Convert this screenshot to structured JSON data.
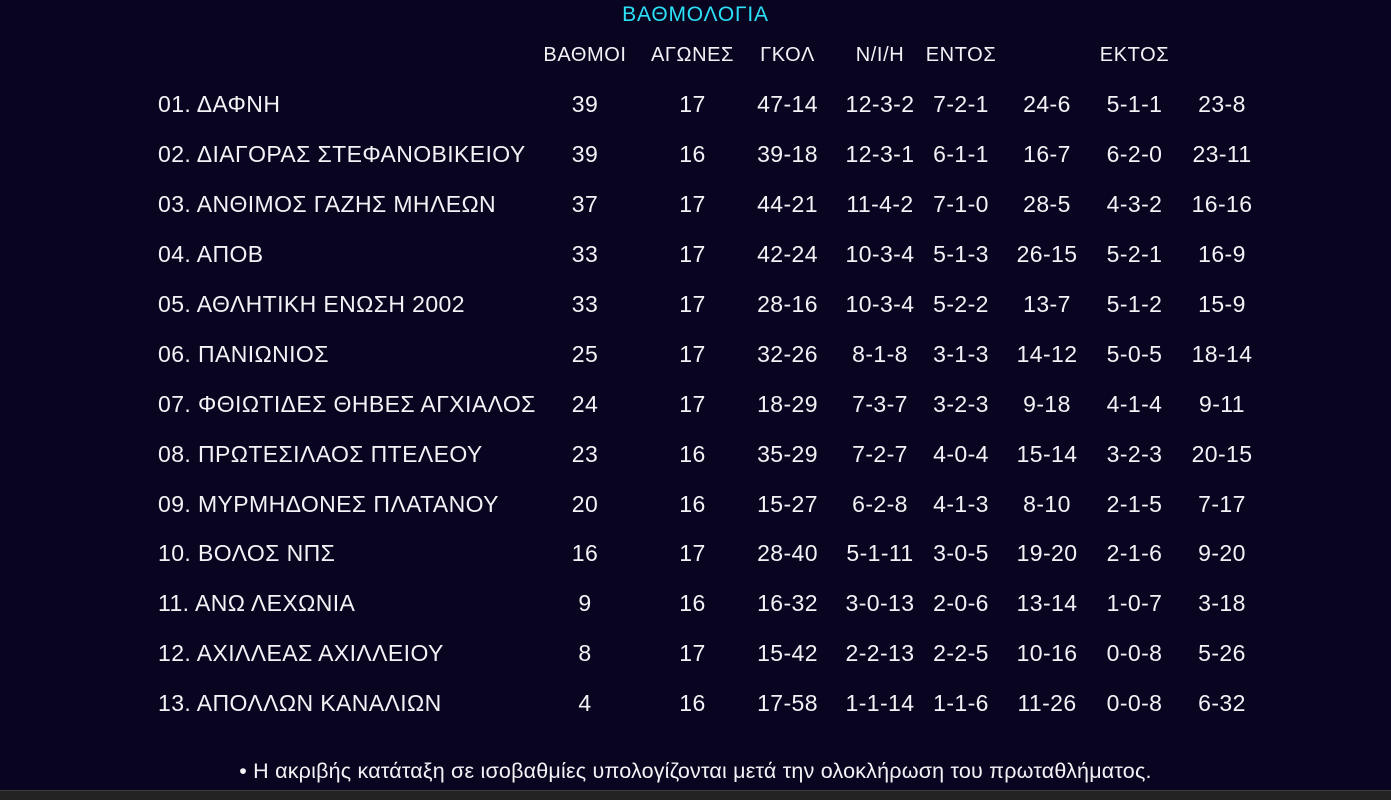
{
  "colors": {
    "background": "#090520",
    "accent_title": "#2be0f7",
    "text": "#f4f2f6",
    "bottom_bar": "#232323"
  },
  "title": "ΒΑΘΜΟΛΟΓΙΑ",
  "headers": {
    "points": "ΒΑΘΜΟΙ",
    "games": "ΑΓΩΝΕΣ",
    "goals": "ΓΚΟΛ",
    "record": "Ν/Ι/Η",
    "home": "ΕΝΤΟΣ",
    "away": "ΕΚΤΟΣ"
  },
  "teams": [
    {
      "rank": "01.",
      "name": "ΔΑΦΝΗ",
      "points": "39",
      "games": "17",
      "goals": "47-14",
      "record": "12-3-2",
      "home_record": "7-2-1",
      "home_goals": "24-6",
      "away_record": "5-1-1",
      "away_goals": "23-8"
    },
    {
      "rank": "02.",
      "name": "ΔΙΑΓΟΡΑΣ ΣΤΕΦΑΝΟΒΙΚΕΙΟΥ",
      "points": "39",
      "games": "16",
      "goals": "39-18",
      "record": "12-3-1",
      "home_record": "6-1-1",
      "home_goals": "16-7",
      "away_record": "6-2-0",
      "away_goals": "23-11"
    },
    {
      "rank": "03.",
      "name": "ΑΝΘΙΜΟΣ ΓΑΖΗΣ ΜΗΛΕΩΝ",
      "points": "37",
      "games": "17",
      "goals": "44-21",
      "record": "11-4-2",
      "home_record": "7-1-0",
      "home_goals": "28-5",
      "away_record": "4-3-2",
      "away_goals": "16-16"
    },
    {
      "rank": "04.",
      "name": "ΑΠΟΒ",
      "points": "33",
      "games": "17",
      "goals": "42-24",
      "record": "10-3-4",
      "home_record": "5-1-3",
      "home_goals": "26-15",
      "away_record": "5-2-1",
      "away_goals": "16-9"
    },
    {
      "rank": "05.",
      "name": "ΑΘΛΗΤΙΚΗ ΕΝΩΣΗ 2002",
      "points": "33",
      "games": "17",
      "goals": "28-16",
      "record": "10-3-4",
      "home_record": "5-2-2",
      "home_goals": "13-7",
      "away_record": "5-1-2",
      "away_goals": "15-9"
    },
    {
      "rank": "06.",
      "name": "ΠΑΝΙΩΝΙΟΣ",
      "points": "25",
      "games": "17",
      "goals": "32-26",
      "record": "8-1-8",
      "home_record": "3-1-3",
      "home_goals": "14-12",
      "away_record": "5-0-5",
      "away_goals": "18-14"
    },
    {
      "rank": "07.",
      "name": "ΦΘΙΩΤΙΔΕΣ ΘΗΒΕΣ ΑΓΧΙΑΛΟΣ",
      "points": "24",
      "games": "17",
      "goals": "18-29",
      "record": "7-3-7",
      "home_record": "3-2-3",
      "home_goals": "9-18",
      "away_record": "4-1-4",
      "away_goals": "9-11"
    },
    {
      "rank": "08.",
      "name": "ΠΡΩΤΕΣΙΛΑΟΣ ΠΤΕΛΕΟΥ",
      "points": "23",
      "games": "16",
      "goals": "35-29",
      "record": "7-2-7",
      "home_record": "4-0-4",
      "home_goals": "15-14",
      "away_record": "3-2-3",
      "away_goals": "20-15"
    },
    {
      "rank": "09.",
      "name": "ΜΥΡΜΗΔΟΝΕΣ ΠΛΑΤΑΝΟΥ",
      "points": "20",
      "games": "16",
      "goals": "15-27",
      "record": "6-2-8",
      "home_record": "4-1-3",
      "home_goals": "8-10",
      "away_record": "2-1-5",
      "away_goals": "7-17"
    },
    {
      "rank": "10.",
      "name": "ΒΟΛΟΣ ΝΠΣ",
      "points": "16",
      "games": "17",
      "goals": "28-40",
      "record": "5-1-11",
      "home_record": "3-0-5",
      "home_goals": "19-20",
      "away_record": "2-1-6",
      "away_goals": "9-20"
    },
    {
      "rank": "11.",
      "name": "ΑΝΩ ΛΕΧΩΝΙΑ",
      "points": "9",
      "games": "16",
      "goals": "16-32",
      "record": "3-0-13",
      "home_record": "2-0-6",
      "home_goals": "13-14",
      "away_record": "1-0-7",
      "away_goals": "3-18"
    },
    {
      "rank": "12.",
      "name": "ΑΧΙΛΛΕΑΣ ΑΧΙΛΛΕΙΟΥ",
      "points": "8",
      "games": "17",
      "goals": "15-42",
      "record": "2-2-13",
      "home_record": "2-2-5",
      "home_goals": "10-16",
      "away_record": "0-0-8",
      "away_goals": "5-26"
    },
    {
      "rank": "13.",
      "name": "ΑΠΟΛΛΩΝ ΚΑΝΑΛΙΩΝ",
      "points": "4",
      "games": "16",
      "goals": "17-58",
      "record": "1-1-14",
      "home_record": "1-1-6",
      "home_goals": "11-26",
      "away_record": "0-0-8",
      "away_goals": "6-32"
    }
  ],
  "footnote": "• Η ακριβής κατάταξη σε ισοβαθμίες υπολογίζονται μετά την ολοκλήρωση του πρωταθλήματος.",
  "chart_data": {
    "type": "table",
    "title": "ΒΑΘΜΟΛΟΓΙΑ",
    "columns": [
      "",
      "ΒΑΘΜΟΙ",
      "ΑΓΩΝΕΣ",
      "ΓΚΟΛ",
      "Ν/Ι/Η",
      "ΕΝΤΟΣ",
      "",
      "ΕΚΤΟΣ",
      ""
    ],
    "rows": [
      [
        "01. ΔΑΦΝΗ",
        "39",
        "17",
        "47-14",
        "12-3-2",
        "7-2-1",
        "24-6",
        "5-1-1",
        "23-8"
      ],
      [
        "02. ΔΙΑΓΟΡΑΣ ΣΤΕΦΑΝΟΒΙΚΕΙΟΥ",
        "39",
        "16",
        "39-18",
        "12-3-1",
        "6-1-1",
        "16-7",
        "6-2-0",
        "23-11"
      ],
      [
        "03. ΑΝΘΙΜΟΣ ΓΑΖΗΣ ΜΗΛΕΩΝ",
        "37",
        "17",
        "44-21",
        "11-4-2",
        "7-1-0",
        "28-5",
        "4-3-2",
        "16-16"
      ],
      [
        "04. ΑΠΟΒ",
        "33",
        "17",
        "42-24",
        "10-3-4",
        "5-1-3",
        "26-15",
        "5-2-1",
        "16-9"
      ],
      [
        "05. ΑΘΛΗΤΙΚΗ ΕΝΩΣΗ 2002",
        "33",
        "17",
        "28-16",
        "10-3-4",
        "5-2-2",
        "13-7",
        "5-1-2",
        "15-9"
      ],
      [
        "06. ΠΑΝΙΩΝΙΟΣ",
        "25",
        "17",
        "32-26",
        "8-1-8",
        "3-1-3",
        "14-12",
        "5-0-5",
        "18-14"
      ],
      [
        "07. ΦΘΙΩΤΙΔΕΣ ΘΗΒΕΣ ΑΓΧΙΑΛΟΣ",
        "24",
        "17",
        "18-29",
        "7-3-7",
        "3-2-3",
        "9-18",
        "4-1-4",
        "9-11"
      ],
      [
        "08. ΠΡΩΤΕΣΙΛΑΟΣ ΠΤΕΛΕΟΥ",
        "23",
        "16",
        "35-29",
        "7-2-7",
        "4-0-4",
        "15-14",
        "3-2-3",
        "20-15"
      ],
      [
        "09. ΜΥΡΜΗΔΟΝΕΣ ΠΛΑΤΑΝΟΥ",
        "20",
        "16",
        "15-27",
        "6-2-8",
        "4-1-3",
        "8-10",
        "2-1-5",
        "7-17"
      ],
      [
        "10. ΒΟΛΟΣ ΝΠΣ",
        "16",
        "17",
        "28-40",
        "5-1-11",
        "3-0-5",
        "19-20",
        "2-1-6",
        "9-20"
      ],
      [
        "11. ΑΝΩ ΛΕΧΩΝΙΑ",
        "9",
        "16",
        "16-32",
        "3-0-13",
        "2-0-6",
        "13-14",
        "1-0-7",
        "3-18"
      ],
      [
        "12. ΑΧΙΛΛΕΑΣ ΑΧΙΛΛΕΙΟΥ",
        "8",
        "17",
        "15-42",
        "2-2-13",
        "2-2-5",
        "10-16",
        "0-0-8",
        "5-26"
      ],
      [
        "13. ΑΠΟΛΛΩΝ ΚΑΝΑΛΙΩΝ",
        "4",
        "16",
        "17-58",
        "1-1-14",
        "1-1-6",
        "11-26",
        "0-0-8",
        "6-32"
      ]
    ]
  }
}
